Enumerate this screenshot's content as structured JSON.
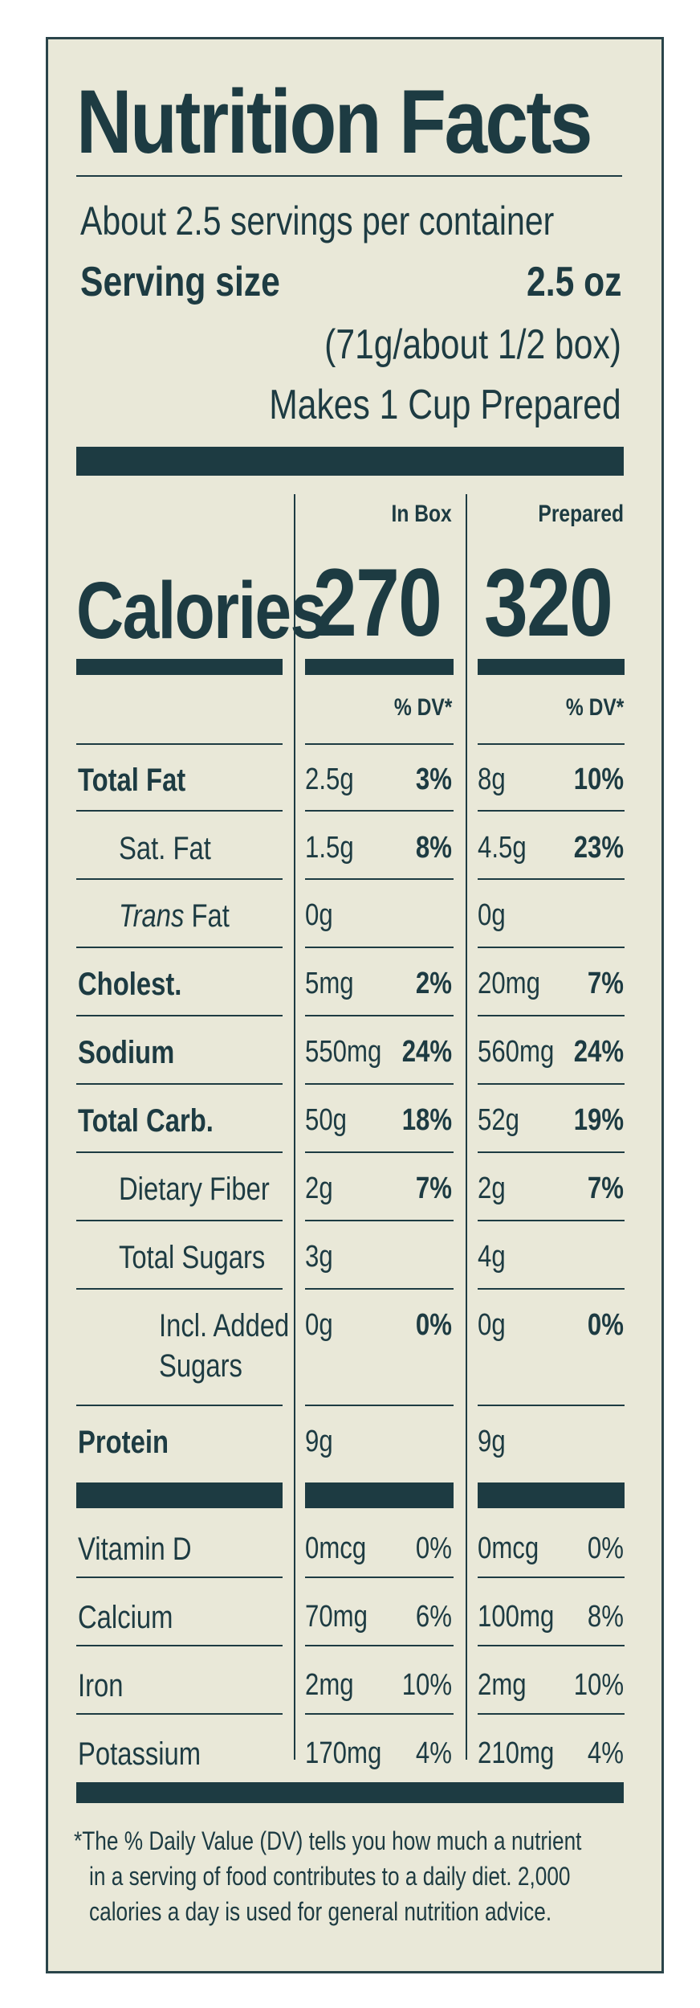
{
  "title": "Nutrition Facts",
  "servings_per_container": "About 2.5 servings per container",
  "serving_size": {
    "label": "Serving size",
    "amount": "2.5 oz",
    "detail": "(71g/about 1/2 box)",
    "prepared_note": "Makes 1 Cup Prepared"
  },
  "columns": {
    "in_box": "In Box",
    "prepared": "Prepared",
    "dv": "% DV*"
  },
  "calories": {
    "label": "Calories",
    "in_box": "270",
    "prepared": "320"
  },
  "nutrients": [
    {
      "label": "Total Fat",
      "bold": true,
      "indent": 0,
      "box_amt": "2.5g",
      "box_dv": "3%",
      "prep_amt": "8g",
      "prep_dv": "10%"
    },
    {
      "label": "Sat. Fat",
      "bold": false,
      "indent": 1,
      "box_amt": "1.5g",
      "box_dv": "8%",
      "prep_amt": "4.5g",
      "prep_dv": "23%"
    },
    {
      "label_italic": "Trans",
      "label": "Fat",
      "bold": false,
      "indent": 1,
      "box_amt": "0g",
      "box_dv": "",
      "prep_amt": "0g",
      "prep_dv": ""
    },
    {
      "label": "Cholest.",
      "bold": true,
      "indent": 0,
      "box_amt": "5mg",
      "box_dv": "2%",
      "prep_amt": "20mg",
      "prep_dv": "7%"
    },
    {
      "label": "Sodium",
      "bold": true,
      "indent": 0,
      "box_amt": "550mg",
      "box_dv": "24%",
      "prep_amt": "560mg",
      "prep_dv": "24%"
    },
    {
      "label": "Total Carb.",
      "bold": true,
      "indent": 0,
      "box_amt": "50g",
      "box_dv": "18%",
      "prep_amt": "52g",
      "prep_dv": "19%"
    },
    {
      "label": "Dietary Fiber",
      "bold": false,
      "indent": 1,
      "box_amt": "2g",
      "box_dv": "7%",
      "prep_amt": "2g",
      "prep_dv": "7%"
    },
    {
      "label": "Total Sugars",
      "bold": false,
      "indent": 1,
      "box_amt": "3g",
      "box_dv": "",
      "prep_amt": "4g",
      "prep_dv": ""
    },
    {
      "label": "Incl. Added",
      "label2": "Sugars",
      "bold": false,
      "indent": 2,
      "box_amt": "0g",
      "box_dv": "0%",
      "prep_amt": "0g",
      "prep_dv": "0%"
    },
    {
      "label": "Protein",
      "bold": true,
      "indent": 0,
      "box_amt": "9g",
      "box_dv": "",
      "prep_amt": "9g",
      "prep_dv": ""
    }
  ],
  "vitamins": [
    {
      "label": "Vitamin D",
      "box_amt": "0mcg",
      "box_dv": "0%",
      "prep_amt": "0mcg",
      "prep_dv": "0%"
    },
    {
      "label": "Calcium",
      "box_amt": "70mg",
      "box_dv": "6%",
      "prep_amt": "100mg",
      "prep_dv": "8%"
    },
    {
      "label": "Iron",
      "box_amt": "2mg",
      "box_dv": "10%",
      "prep_amt": "2mg",
      "prep_dv": "10%"
    },
    {
      "label": "Potassium",
      "box_amt": "170mg",
      "box_dv": "4%",
      "prep_amt": "210mg",
      "prep_dv": "4%"
    }
  ],
  "footnote": [
    "*The % Daily Value (DV) tells you how much a nutrient",
    "in a serving of food contributes to a daily diet. 2,000",
    "calories a day is used for general nutrition advice."
  ],
  "colors": {
    "ink": "#1d3b42",
    "paper": "#e9e8d8"
  }
}
